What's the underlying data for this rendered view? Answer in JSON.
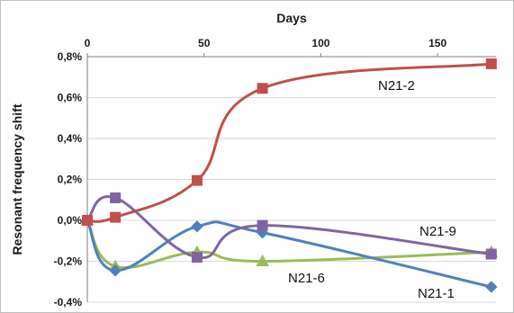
{
  "chart_data": {
    "type": "line",
    "title": "",
    "xlabel": "Days",
    "ylabel": "Resonant frequency shift",
    "xlim": [
      0,
      175
    ],
    "ylim": [
      -0.4,
      0.8
    ],
    "x_ticks": [
      0,
      50,
      100,
      150
    ],
    "x_tick_labels": [
      "0",
      "50",
      "100",
      "150"
    ],
    "y_ticks": [
      0.8,
      0.6,
      0.4,
      0.2,
      0.0,
      -0.2,
      -0.4
    ],
    "y_tick_labels": [
      "0,8%",
      "0,6%",
      "0,4%",
      "0,2%",
      "0,0%",
      "-0,2%",
      "-0,4%"
    ],
    "x_axis_position": "top",
    "grid": "horizontal",
    "legend": "none (series labeled inline)",
    "smooth_lines": true,
    "series": [
      {
        "name": "N21-2",
        "color": "#c0504d",
        "marker": "square",
        "x": [
          0,
          12,
          47,
          75,
          173
        ],
        "y": [
          0.0,
          0.015,
          0.195,
          0.645,
          0.765
        ]
      },
      {
        "name": "N21-9",
        "color": "#8064a2",
        "marker": "square",
        "x": [
          0,
          12,
          47,
          75,
          173
        ],
        "y": [
          0.0,
          0.11,
          -0.18,
          -0.025,
          -0.165
        ]
      },
      {
        "name": "N21-6",
        "color": "#9bbb59",
        "marker": "triangle",
        "x": [
          0,
          12,
          47,
          75,
          173
        ],
        "y": [
          0.0,
          -0.225,
          -0.155,
          -0.2,
          -0.155
        ]
      },
      {
        "name": "N21-1",
        "color": "#4f81bd",
        "marker": "diamond",
        "x": [
          0,
          12,
          47,
          75,
          173
        ],
        "y": [
          0.0,
          -0.245,
          -0.03,
          -0.06,
          -0.325
        ]
      }
    ]
  }
}
